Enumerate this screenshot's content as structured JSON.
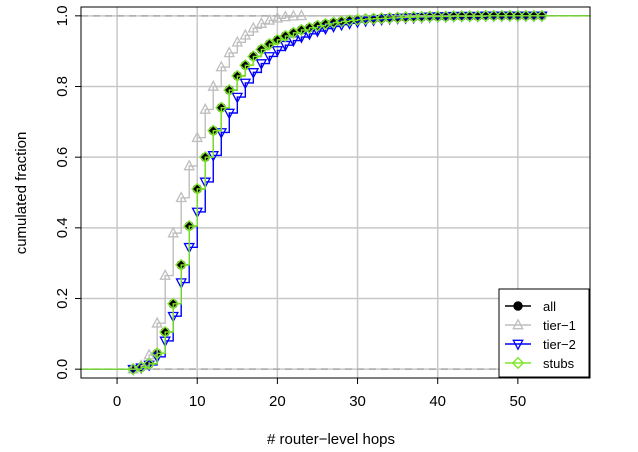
{
  "chart_data": {
    "type": "line",
    "title": "",
    "xlabel": "# router−level hops",
    "ylabel": "cumulated fraction",
    "xlim": [
      -4.5,
      59
    ],
    "ylim": [
      -0.025,
      1.025
    ],
    "x_ticks": [
      0,
      10,
      20,
      30,
      40,
      50
    ],
    "x_tick_labels": [
      "0",
      "10",
      "20",
      "30",
      "40",
      "50"
    ],
    "y_ticks": [
      0.0,
      0.2,
      0.4,
      0.6,
      0.8,
      1.0
    ],
    "y_tick_labels": [
      "0.0",
      "0.2",
      "0.4",
      "0.6",
      "0.8",
      "1.0"
    ],
    "grid": true,
    "reference_lines": [
      0,
      1
    ],
    "legend_position": "bottom-right",
    "series": [
      {
        "name": "all",
        "color": "#000000",
        "marker": "filled-circle",
        "x": [
          2,
          3,
          4,
          5,
          6,
          7,
          8,
          9,
          10,
          11,
          12,
          13,
          14,
          15,
          16,
          17,
          18,
          19,
          20,
          21,
          22,
          23,
          24,
          25,
          26,
          27,
          28,
          29,
          30,
          31,
          32,
          33,
          34,
          35,
          36,
          37,
          38,
          39,
          40,
          41,
          42,
          43,
          44,
          45,
          46,
          47,
          48,
          49,
          50,
          51,
          52,
          53
        ],
        "y": [
          0.0,
          0.005,
          0.015,
          0.045,
          0.105,
          0.185,
          0.295,
          0.405,
          0.51,
          0.6,
          0.675,
          0.74,
          0.79,
          0.83,
          0.86,
          0.885,
          0.905,
          0.92,
          0.932,
          0.943,
          0.952,
          0.96,
          0.966,
          0.972,
          0.977,
          0.981,
          0.984,
          0.987,
          0.989,
          0.991,
          0.992,
          0.993,
          0.994,
          0.995,
          0.996,
          0.997,
          0.997,
          0.998,
          0.998,
          0.998,
          0.999,
          0.999,
          0.999,
          0.999,
          1.0,
          1.0,
          1.0,
          1.0,
          1.0,
          1.0,
          1.0,
          1.0
        ]
      },
      {
        "name": "tier−1",
        "color": "#bebebe",
        "marker": "triangle-up",
        "x": [
          2,
          3,
          4,
          5,
          6,
          7,
          8,
          9,
          10,
          11,
          12,
          13,
          14,
          15,
          16,
          17,
          18,
          19,
          20,
          21,
          22,
          23
        ],
        "y": [
          0.0,
          0.01,
          0.04,
          0.13,
          0.265,
          0.385,
          0.485,
          0.575,
          0.655,
          0.735,
          0.8,
          0.855,
          0.895,
          0.925,
          0.945,
          0.965,
          0.978,
          0.987,
          0.993,
          0.997,
          0.999,
          1.0
        ]
      },
      {
        "name": "tier−2",
        "color": "#0000ff",
        "marker": "triangle-down",
        "x": [
          2,
          3,
          4,
          5,
          6,
          7,
          8,
          9,
          10,
          11,
          12,
          13,
          14,
          15,
          16,
          17,
          18,
          19,
          20,
          21,
          22,
          23,
          24,
          25,
          26,
          27,
          28,
          29,
          30,
          31,
          32,
          33,
          34,
          35,
          36,
          37,
          38,
          39,
          40,
          41,
          42,
          43,
          44,
          45,
          46,
          47,
          48,
          49,
          50,
          51,
          52,
          53
        ],
        "y": [
          0.0,
          0.004,
          0.012,
          0.035,
          0.08,
          0.15,
          0.245,
          0.345,
          0.445,
          0.53,
          0.605,
          0.67,
          0.725,
          0.77,
          0.81,
          0.84,
          0.865,
          0.885,
          0.902,
          0.917,
          0.93,
          0.94,
          0.949,
          0.957,
          0.964,
          0.97,
          0.975,
          0.979,
          0.983,
          0.986,
          0.988,
          0.99,
          0.992,
          0.993,
          0.994,
          0.995,
          0.996,
          0.997,
          0.998,
          0.998,
          0.999,
          0.999,
          0.999,
          0.999,
          1.0,
          1.0,
          1.0,
          1.0,
          1.0,
          1.0,
          1.0,
          1.0
        ]
      },
      {
        "name": "stubs",
        "color": "#7fe52a",
        "marker": "diamond",
        "x": [
          2,
          3,
          4,
          5,
          6,
          7,
          8,
          9,
          10,
          11,
          12,
          13,
          14,
          15,
          16,
          17,
          18,
          19,
          20,
          21,
          22,
          23,
          24,
          25,
          26,
          27,
          28,
          29,
          30,
          31,
          32,
          33,
          34,
          35,
          36,
          37,
          38,
          39,
          40,
          41,
          42,
          43,
          44,
          45,
          46,
          47,
          48,
          49,
          50,
          51,
          52,
          53
        ],
        "y": [
          0.0,
          0.005,
          0.015,
          0.045,
          0.105,
          0.185,
          0.295,
          0.405,
          0.51,
          0.6,
          0.675,
          0.74,
          0.79,
          0.83,
          0.86,
          0.885,
          0.905,
          0.92,
          0.932,
          0.943,
          0.952,
          0.96,
          0.966,
          0.972,
          0.977,
          0.981,
          0.984,
          0.987,
          0.989,
          0.991,
          0.992,
          0.993,
          0.994,
          0.995,
          0.996,
          0.997,
          0.997,
          0.998,
          0.998,
          0.998,
          0.999,
          0.999,
          0.999,
          0.999,
          1.0,
          1.0,
          1.0,
          1.0,
          1.0,
          1.0,
          1.0,
          1.0
        ]
      }
    ]
  }
}
